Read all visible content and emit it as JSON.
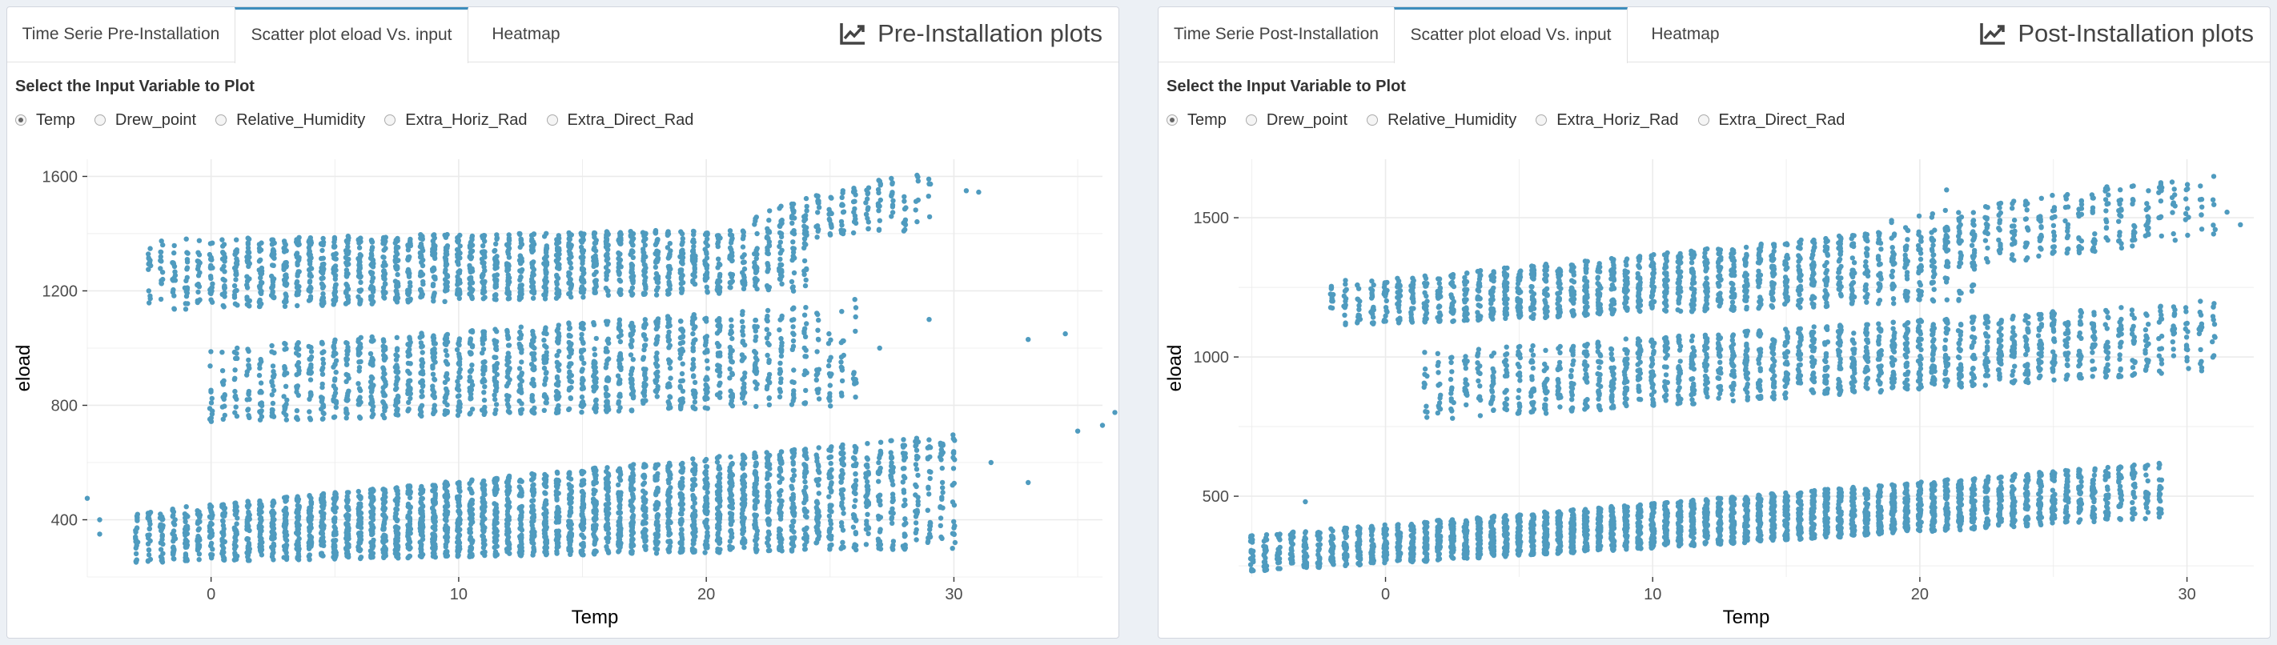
{
  "left_panel": {
    "tabs": [
      {
        "label": "Time Serie Pre-Installation",
        "active": false
      },
      {
        "label": "Scatter plot eload Vs. input",
        "active": true
      },
      {
        "label": "Heatmap",
        "active": false
      }
    ],
    "title": "Pre-Installation plots",
    "control_label": "Select the Input Variable to Plot",
    "options": [
      "Temp",
      "Drew_point",
      "Relative_Humidity",
      "Extra_Horiz_Rad",
      "Extra_Direct_Rad"
    ],
    "selected": "Temp"
  },
  "right_panel": {
    "tabs": [
      {
        "label": "Time Serie Post-Installation",
        "active": false
      },
      {
        "label": "Scatter plot eload Vs. input",
        "active": true
      },
      {
        "label": "Heatmap",
        "active": false
      }
    ],
    "title": "Post-Installation plots",
    "control_label": "Select the Input Variable to Plot",
    "options": [
      "Temp",
      "Drew_point",
      "Relative_Humidity",
      "Extra_Horiz_Rad",
      "Extra_Direct_Rad"
    ],
    "selected": "Temp"
  },
  "colors": {
    "point": "#4f9bbf",
    "accent": "#3c8dbc",
    "grid": "#ebebeb"
  },
  "icons": {
    "title_icon": "line-chart-icon"
  },
  "chart_data": [
    {
      "type": "scatter",
      "xlabel": "Temp",
      "ylabel": "eload",
      "xlim": [
        -5,
        36
      ],
      "ylim": [
        200,
        1660
      ],
      "xticks": [
        0,
        10,
        20,
        30
      ],
      "yticks": [
        400,
        800,
        1200,
        1600
      ],
      "grid": true,
      "series": [
        {
          "bands": [
            {
              "x": [
                -2.5,
                24
              ],
              "y_start": [
                1130,
                1380
              ],
              "y_end": [
                1200,
                1420
              ],
              "spread": 150,
              "density": 38
            },
            {
              "x": [
                22,
                29
              ],
              "y_start": [
                1370,
                1480
              ],
              "y_end": [
                1410,
                1630
              ],
              "spread": 130,
              "density": 14
            },
            {
              "x": [
                0,
                26
              ],
              "y_start": [
                740,
                1000
              ],
              "y_end": [
                800,
                1160
              ],
              "spread": 150,
              "density": 34
            },
            {
              "x": [
                -3,
                30
              ],
              "y_start": [
                250,
                430
              ],
              "y_end": [
                300,
                700
              ],
              "spread": 210,
              "density": 60
            }
          ],
          "extra_points": [
            {
              "x": 31,
              "y": 1545
            },
            {
              "x": 30.5,
              "y": 1550
            },
            {
              "x": 33,
              "y": 1030
            },
            {
              "x": 34.5,
              "y": 1050
            },
            {
              "x": 29,
              "y": 1100
            },
            {
              "x": 31.5,
              "y": 600
            },
            {
              "x": 33,
              "y": 530
            },
            {
              "x": 35,
              "y": 710
            },
            {
              "x": 36,
              "y": 730
            },
            {
              "x": 36.5,
              "y": 775
            },
            {
              "x": -5,
              "y": 475
            },
            {
              "x": -4.5,
              "y": 400
            },
            {
              "x": -4.5,
              "y": 350
            },
            {
              "x": 27,
              "y": 1000
            },
            {
              "x": 26,
              "y": 1170
            }
          ]
        }
      ]
    },
    {
      "type": "scatter",
      "xlabel": "Temp",
      "ylabel": "eload",
      "xlim": [
        -5.5,
        32.5
      ],
      "ylim": [
        210,
        1710
      ],
      "xticks": [
        0,
        10,
        20,
        30
      ],
      "yticks": [
        500,
        1000,
        1500
      ],
      "grid": true,
      "series": [
        {
          "bands": [
            {
              "x": [
                -2,
                22
              ],
              "y_start": [
                1110,
                1260
              ],
              "y_end": [
                1200,
                1480
              ],
              "spread": 150,
              "density": 36
            },
            {
              "x": [
                19,
                31
              ],
              "y_start": [
                1290,
                1500
              ],
              "y_end": [
                1430,
                1670
              ],
              "spread": 170,
              "density": 16
            },
            {
              "x": [
                1.5,
                31
              ],
              "y_start": [
                770,
                1020
              ],
              "y_end": [
                950,
                1200
              ],
              "spread": 170,
              "density": 32
            },
            {
              "x": [
                -5,
                29
              ],
              "y_start": [
                230,
                360
              ],
              "y_end": [
                420,
                620
              ],
              "spread": 220,
              "density": 60
            }
          ],
          "extra_points": [
            {
              "x": 32,
              "y": 1475
            },
            {
              "x": 31.5,
              "y": 1520
            },
            {
              "x": 30.5,
              "y": 1200
            },
            {
              "x": 29.5,
              "y": 1180
            },
            {
              "x": -4.5,
              "y": 300
            },
            {
              "x": -3,
              "y": 480
            },
            {
              "x": 28,
              "y": 540
            },
            {
              "x": 27.5,
              "y": 510
            },
            {
              "x": -1.5,
              "y": 1275
            },
            {
              "x": 24,
              "y": 950
            },
            {
              "x": 21,
              "y": 1600
            }
          ]
        }
      ]
    }
  ]
}
